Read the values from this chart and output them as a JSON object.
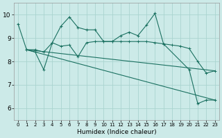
{
  "xlabel": "Humidex (Indice chaleur)",
  "background_color": "#cceae8",
  "grid_color": "#aad4d0",
  "line_color": "#1a7060",
  "xlim": [
    -0.5,
    23.5
  ],
  "ylim": [
    5.5,
    10.5
  ],
  "xticks": [
    0,
    1,
    2,
    3,
    4,
    5,
    6,
    7,
    8,
    9,
    10,
    11,
    12,
    13,
    14,
    15,
    16,
    17,
    18,
    19,
    20,
    21,
    22,
    23
  ],
  "yticks": [
    6,
    7,
    8,
    9,
    10
  ],
  "line1_x": [
    0,
    1,
    2,
    3,
    4,
    5,
    6,
    7,
    8,
    9,
    10,
    11,
    12,
    13,
    14,
    15,
    16,
    17,
    20,
    21,
    22,
    23
  ],
  "line1_y": [
    9.6,
    8.5,
    8.5,
    8.4,
    8.8,
    9.5,
    9.9,
    9.45,
    9.35,
    9.35,
    8.85,
    8.85,
    9.1,
    9.25,
    9.1,
    9.55,
    10.05,
    8.75,
    7.65,
    6.2,
    6.35,
    6.35
  ],
  "line2_x": [
    1,
    23
  ],
  "line2_y": [
    8.5,
    7.6
  ],
  "line3_x": [
    1,
    23
  ],
  "line3_y": [
    8.5,
    6.35
  ],
  "line4_x": [
    1,
    2,
    3,
    4,
    5,
    6,
    7,
    8,
    9,
    10,
    11,
    12,
    13,
    14,
    15,
    16,
    17,
    18,
    19,
    20,
    21,
    22,
    23
  ],
  "line4_y": [
    8.5,
    8.4,
    7.65,
    8.8,
    8.65,
    8.7,
    8.2,
    8.8,
    8.85,
    8.85,
    8.85,
    8.85,
    8.85,
    8.85,
    8.85,
    8.8,
    8.75,
    8.7,
    8.65,
    8.55,
    8.0,
    7.5,
    7.6
  ]
}
